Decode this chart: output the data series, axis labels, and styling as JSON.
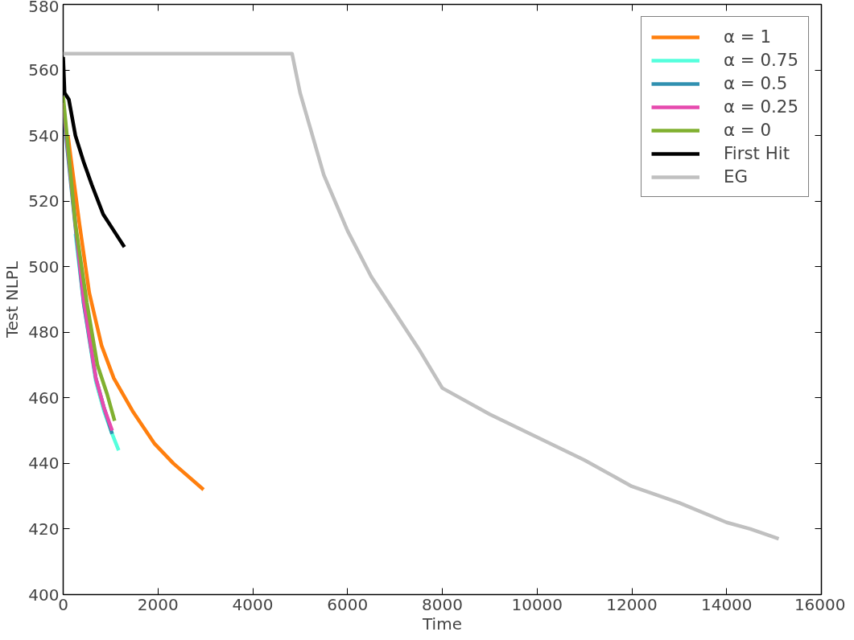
{
  "chart_data": {
    "type": "line",
    "xlabel": "Time",
    "ylabel": "Test NLPL",
    "xlim": [
      0,
      16000
    ],
    "ylim": [
      400,
      580
    ],
    "xticks": [
      0,
      2000,
      4000,
      6000,
      8000,
      10000,
      12000,
      14000,
      16000
    ],
    "yticks": [
      400,
      420,
      440,
      460,
      480,
      500,
      520,
      540,
      560,
      580
    ],
    "grid": false,
    "legend": "top right",
    "marker": "none",
    "line_style": "solid",
    "series": [
      {
        "name": "α = 1",
        "color": "#ff7f0e",
        "x": [
          100,
          344,
          551,
          809,
          1068,
          1464,
          1929,
          2325,
          2962
        ],
        "values": [
          540,
          513,
          492,
          476,
          466,
          456,
          446,
          440,
          432
        ]
      },
      {
        "name": "α = 0.75",
        "color": "#55ffdd",
        "x": [
          258,
          431,
          689,
          861,
          1033,
          1171
        ],
        "values": [
          510,
          489,
          465,
          456,
          449,
          444
        ]
      },
      {
        "name": "α = 0.5",
        "color": "#3090b0",
        "x": [
          0,
          258,
          431,
          689,
          861,
          1033
        ],
        "values": [
          548,
          512,
          489,
          466,
          457,
          449
        ]
      },
      {
        "name": "α = 0.25",
        "color": "#e64aae",
        "x": [
          0,
          258,
          431,
          689,
          861,
          1033
        ],
        "values": [
          550,
          513,
          490,
          466,
          457,
          450
        ]
      },
      {
        "name": "α = 0",
        "color": "#80b030",
        "x": [
          0,
          258,
          500,
          723,
          930,
          1085
        ],
        "values": [
          552,
          513,
          489,
          470,
          461,
          453
        ]
      },
      {
        "name": "First Hit",
        "color": "#000000",
        "x": [
          0,
          30,
          120,
          258,
          431,
          603,
          844,
          1068,
          1292
        ],
        "values": [
          564,
          553,
          551,
          540,
          532,
          525,
          516,
          511,
          506
        ]
      },
      {
        "name": "EG",
        "color": "#c0c0c0",
        "x": [
          0,
          4830,
          4900,
          5000,
          5200,
          5500,
          6000,
          6500,
          7000,
          7500,
          8000,
          9000,
          10000,
          11000,
          12000,
          13000,
          14000,
          14500,
          15100
        ],
        "values": [
          565,
          565,
          560,
          553,
          543,
          528,
          511,
          497,
          486,
          475,
          463,
          455,
          448,
          441,
          433,
          428,
          422,
          420,
          417
        ]
      }
    ]
  }
}
